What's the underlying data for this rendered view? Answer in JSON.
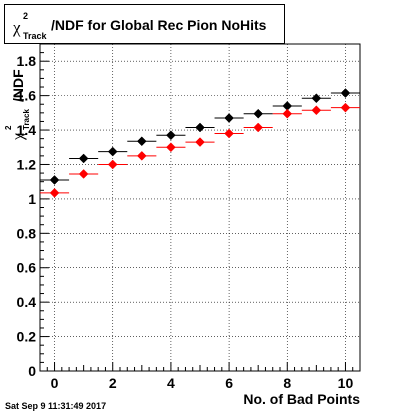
{
  "window": {
    "timestamp": "Sat Sep  9 11:31:49 2017"
  },
  "title_box": {
    "symbol": "χ",
    "superscript": "2",
    "subscript": "Track",
    "text": "/NDF for Global Rec Pion NoHits"
  },
  "chart_data": {
    "type": "scatter",
    "title": "χ²_Track/NDF for Global Rec Pion NoHits",
    "xlabel": "No. of Bad Points",
    "ylabel": {
      "symbol": "χ",
      "superscript": "2",
      "subscript": "Track",
      "text": "/NDF"
    },
    "xlim": [
      -0.5,
      10.5
    ],
    "ylim": [
      0,
      1.9
    ],
    "xticks": [
      0,
      2,
      4,
      6,
      8,
      10
    ],
    "yticks": [
      0,
      0.2,
      0.4,
      0.6,
      0.8,
      1,
      1.2,
      1.4,
      1.6,
      1.8
    ],
    "xtick_labels": [
      "0",
      "2",
      "4",
      "6",
      "8",
      "10"
    ],
    "ytick_labels": [
      "0",
      "0.2",
      "0.4",
      "0.6",
      "0.8",
      "1",
      "1.2",
      "1.4",
      "1.6",
      "1.8"
    ],
    "grid": true,
    "x": [
      0,
      1,
      2,
      3,
      4,
      5,
      6,
      7,
      8,
      9,
      10
    ],
    "x_error": 0.5,
    "series": [
      {
        "color": "#000000",
        "marker": "diamond",
        "values": [
          1.11,
          1.235,
          1.275,
          1.335,
          1.37,
          1.415,
          1.47,
          1.495,
          1.54,
          1.585,
          1.615
        ]
      },
      {
        "color": "#ff0000",
        "marker": "diamond",
        "values": [
          1.035,
          1.145,
          1.2,
          1.25,
          1.3,
          1.33,
          1.38,
          1.415,
          1.495,
          1.515,
          1.53
        ]
      }
    ]
  }
}
